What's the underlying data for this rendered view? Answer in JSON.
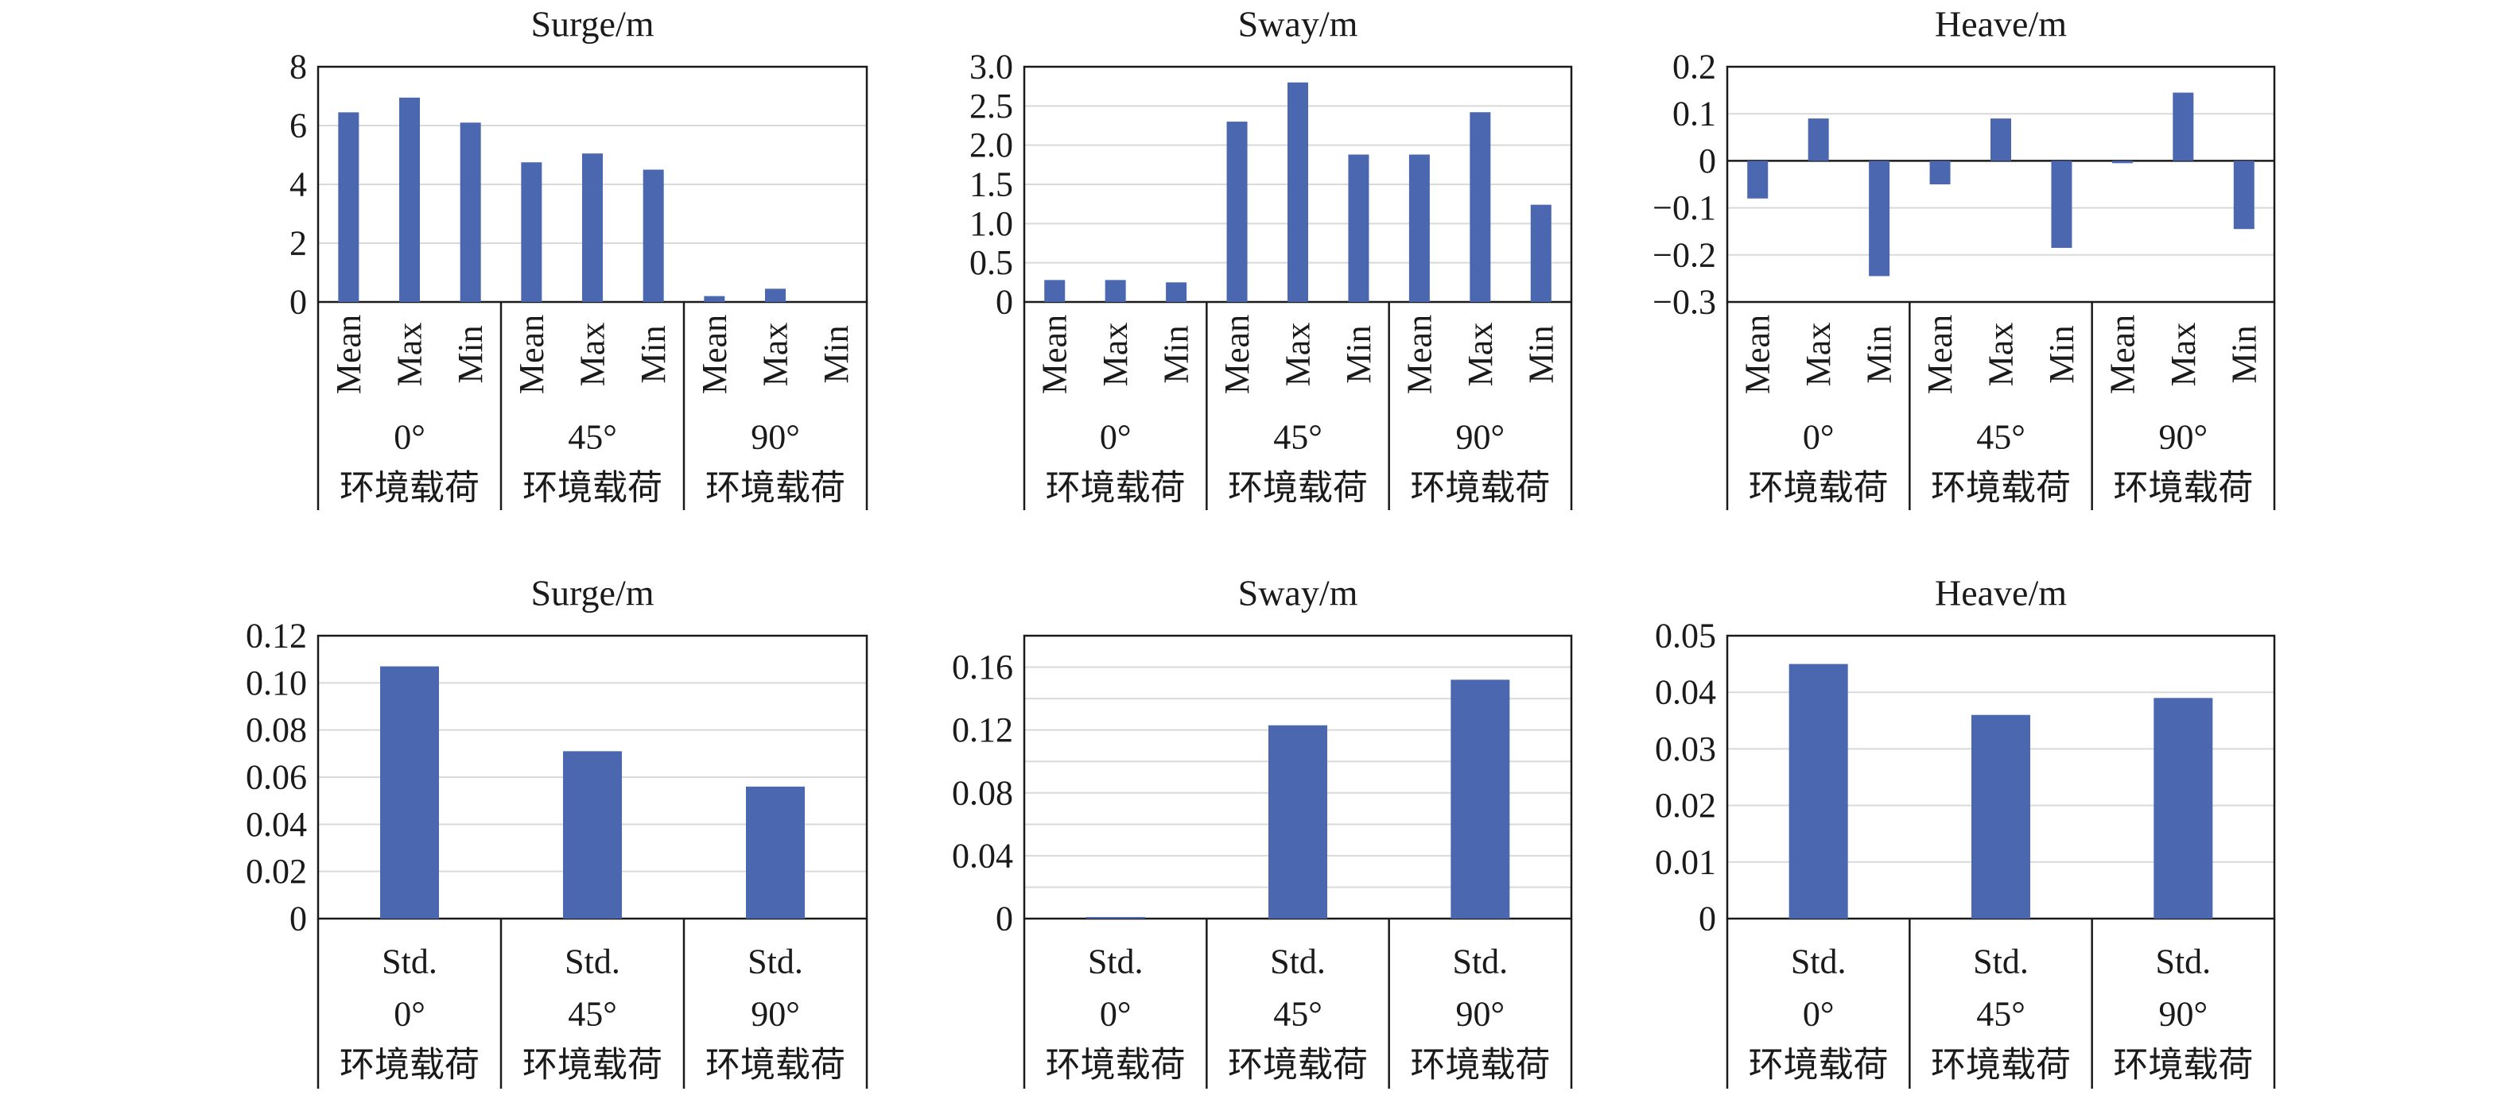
{
  "colors": {
    "bar": "#4a67b0",
    "grid": "#d9d9d9",
    "axis": "#1a1a1a"
  },
  "chart_data": [
    {
      "type": "bar",
      "title": "Surge/m",
      "groups": [
        "0°",
        "45°",
        "90°"
      ],
      "group_suffix": "环境载荷",
      "categories": [
        "Mean",
        "Max",
        "Min"
      ],
      "series": [
        {
          "group": "0°",
          "values": [
            6.45,
            6.95,
            6.1
          ]
        },
        {
          "group": "45°",
          "values": [
            4.75,
            5.05,
            4.5
          ]
        },
        {
          "group": "90°",
          "values": [
            0.2,
            0.45,
            0.0
          ]
        }
      ],
      "ylim": [
        0,
        8
      ],
      "yticks": [
        0,
        2,
        4,
        6,
        8
      ],
      "ytick_labels": [
        "0",
        "2",
        "4",
        "6",
        "8"
      ],
      "grid": true
    },
    {
      "type": "bar",
      "title": "Sway/m",
      "groups": [
        "0°",
        "45°",
        "90°"
      ],
      "group_suffix": "环境载荷",
      "categories": [
        "Mean",
        "Max",
        "Min"
      ],
      "series": [
        {
          "group": "0°",
          "values": [
            0.28,
            0.28,
            0.25
          ]
        },
        {
          "group": "45°",
          "values": [
            2.3,
            2.8,
            1.88
          ]
        },
        {
          "group": "90°",
          "values": [
            1.88,
            2.42,
            1.24
          ]
        }
      ],
      "ylim": [
        0,
        3.0
      ],
      "yticks": [
        0,
        0.5,
        1.0,
        1.5,
        2.0,
        2.5,
        3.0
      ],
      "ytick_labels": [
        "0",
        "0.5",
        "1.0",
        "1.5",
        "2.0",
        "2.5",
        "3.0"
      ],
      "grid": true
    },
    {
      "type": "bar",
      "title": "Heave/m",
      "groups": [
        "0°",
        "45°",
        "90°"
      ],
      "group_suffix": "环境载荷",
      "categories": [
        "Mean",
        "Max",
        "Min"
      ],
      "series": [
        {
          "group": "0°",
          "values": [
            -0.08,
            0.09,
            -0.245
          ]
        },
        {
          "group": "45°",
          "values": [
            -0.05,
            0.09,
            -0.185
          ]
        },
        {
          "group": "90°",
          "values": [
            -0.005,
            0.145,
            -0.145
          ]
        }
      ],
      "ylim": [
        -0.3,
        0.2
      ],
      "yticks": [
        -0.3,
        -0.2,
        -0.1,
        0,
        0.1,
        0.2
      ],
      "ytick_labels": [
        "−0.3",
        "−0.2",
        "−0.1",
        "0",
        "0.1",
        "0.2"
      ],
      "grid": true
    },
    {
      "type": "bar",
      "title": "Surge/m",
      "groups": [
        "0°",
        "45°",
        "90°"
      ],
      "group_suffix": "环境载荷",
      "categories": [
        "Std."
      ],
      "series": [
        {
          "group": "0°",
          "values": [
            0.107
          ]
        },
        {
          "group": "45°",
          "values": [
            0.071
          ]
        },
        {
          "group": "90°",
          "values": [
            0.056
          ]
        }
      ],
      "ylim": [
        0,
        0.12
      ],
      "yticks": [
        0,
        0.02,
        0.04,
        0.06,
        0.08,
        0.1,
        0.12
      ],
      "ytick_labels": [
        "0",
        "0.02",
        "0.04",
        "0.06",
        "0.08",
        "0.10",
        "0.12"
      ],
      "grid": true
    },
    {
      "type": "bar",
      "title": "Sway/m",
      "groups": [
        "0°",
        "45°",
        "90°"
      ],
      "group_suffix": "环境载荷",
      "categories": [
        "Std."
      ],
      "series": [
        {
          "group": "0°",
          "values": [
            0.001
          ]
        },
        {
          "group": "45°",
          "values": [
            0.123
          ]
        },
        {
          "group": "90°",
          "values": [
            0.152
          ]
        }
      ],
      "ylim": [
        0,
        0.18
      ],
      "yticks": [
        0,
        0.04,
        0.08,
        0.12,
        0.16
      ],
      "ytick_labels": [
        "0",
        "0.04",
        "0.08",
        "0.12",
        "0.16"
      ],
      "minor_grid_step": 0.02,
      "grid": true
    },
    {
      "type": "bar",
      "title": "Heave/m",
      "groups": [
        "0°",
        "45°",
        "90°"
      ],
      "group_suffix": "环境载荷",
      "categories": [
        "Std."
      ],
      "series": [
        {
          "group": "0°",
          "values": [
            0.045
          ]
        },
        {
          "group": "45°",
          "values": [
            0.036
          ]
        },
        {
          "group": "90°",
          "values": [
            0.039
          ]
        }
      ],
      "ylim": [
        0,
        0.05
      ],
      "yticks": [
        0,
        0.01,
        0.02,
        0.03,
        0.04,
        0.05
      ],
      "ytick_labels": [
        "0",
        "0.01",
        "0.02",
        "0.03",
        "0.04",
        "0.05"
      ],
      "grid": true
    }
  ]
}
